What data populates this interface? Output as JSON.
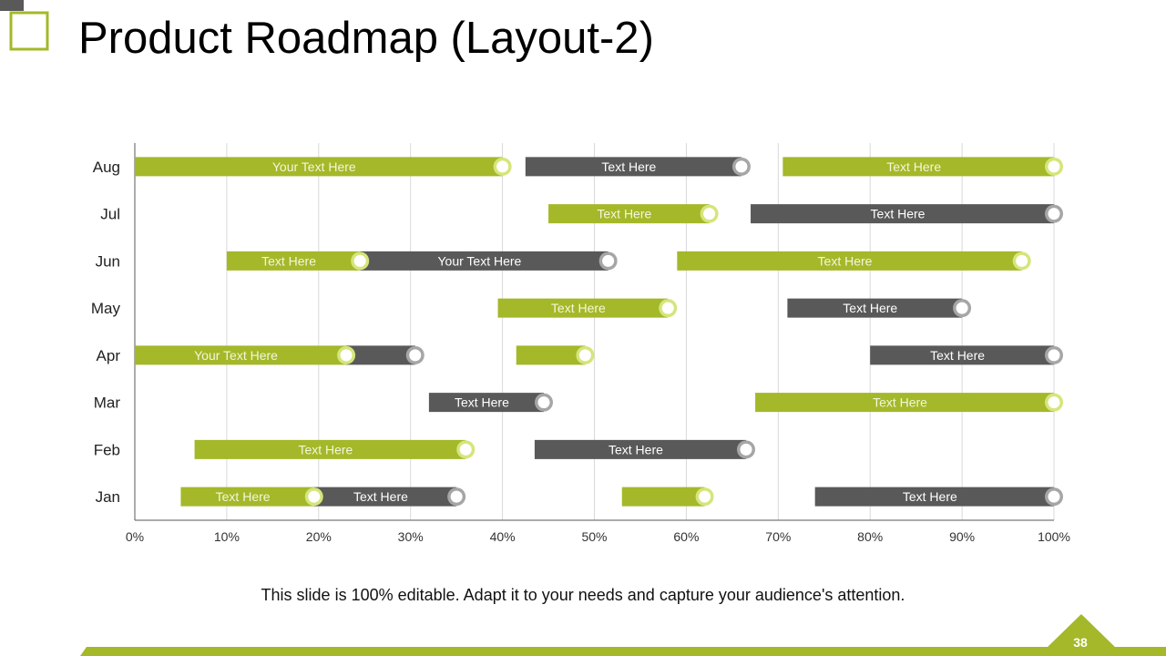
{
  "slide": {
    "title": "Product Roadmap (Layout-2)",
    "caption": "This slide is 100% editable. Adapt it to your needs and capture your audience's attention.",
    "page_number": "38"
  },
  "colors": {
    "green": "#A4B82A",
    "dark": "#595959",
    "ring_green": "#D6E57A",
    "ring_gray": "#A6A6A6",
    "grid": "#D9D9D9",
    "accent_deco": "#A4B82A"
  },
  "chart_data": {
    "type": "bar",
    "orientation": "horizontal-gantt",
    "categories": [
      "Jan",
      "Feb",
      "Mar",
      "Apr",
      "May",
      "Jun",
      "Jul",
      "Aug"
    ],
    "xlim": [
      0,
      100
    ],
    "x_ticks": [
      "0%",
      "10%",
      "20%",
      "30%",
      "40%",
      "50%",
      "60%",
      "70%",
      "80%",
      "90%",
      "100%"
    ],
    "grid": true,
    "bars": [
      {
        "row": "Aug",
        "start": 0,
        "end": 40,
        "color": "green",
        "label": "Your Text Here"
      },
      {
        "row": "Aug",
        "start": 42.5,
        "end": 66,
        "color": "dark",
        "label": "Text Here"
      },
      {
        "row": "Aug",
        "start": 70.5,
        "end": 100,
        "color": "green",
        "label": "Text Here"
      },
      {
        "row": "Jul",
        "start": 45,
        "end": 62.5,
        "color": "green",
        "label": "Text Here"
      },
      {
        "row": "Jul",
        "start": 67,
        "end": 100,
        "color": "dark",
        "label": "Text Here"
      },
      {
        "row": "Jun",
        "start": 24.5,
        "end": 51.5,
        "color": "dark",
        "label": "Your Text Here"
      },
      {
        "row": "Jun",
        "start": 10,
        "end": 24.5,
        "color": "green",
        "label": "Text Here"
      },
      {
        "row": "Jun",
        "start": 59,
        "end": 96.5,
        "color": "green",
        "label": "Text Here"
      },
      {
        "row": "May",
        "start": 39.5,
        "end": 58,
        "color": "green",
        "label": "Text Here"
      },
      {
        "row": "May",
        "start": 71,
        "end": 90,
        "color": "dark",
        "label": "Text Here"
      },
      {
        "row": "Apr",
        "start": 23,
        "end": 30.5,
        "color": "dark",
        "label": ""
      },
      {
        "row": "Apr",
        "start": 0,
        "end": 23,
        "color": "green",
        "label": "Your Text Here"
      },
      {
        "row": "Apr",
        "start": 41.5,
        "end": 49,
        "color": "green",
        "label": ""
      },
      {
        "row": "Apr",
        "start": 80,
        "end": 100,
        "color": "dark",
        "label": "Text Here"
      },
      {
        "row": "Mar",
        "start": 32,
        "end": 44.5,
        "color": "dark",
        "label": "Text Here"
      },
      {
        "row": "Mar",
        "start": 67.5,
        "end": 100,
        "color": "green",
        "label": "Text Here"
      },
      {
        "row": "Feb",
        "start": 6.5,
        "end": 36,
        "color": "green",
        "label": "Text Here"
      },
      {
        "row": "Feb",
        "start": 43.5,
        "end": 66.5,
        "color": "dark",
        "label": "Text Here"
      },
      {
        "row": "Jan",
        "start": 19.5,
        "end": 35,
        "color": "dark",
        "label": "Text Here"
      },
      {
        "row": "Jan",
        "start": 5,
        "end": 19.5,
        "color": "green",
        "label": "Text Here"
      },
      {
        "row": "Jan",
        "start": 53,
        "end": 62,
        "color": "green",
        "label": ""
      },
      {
        "row": "Jan",
        "start": 74,
        "end": 100,
        "color": "dark",
        "label": "Text Here"
      }
    ]
  }
}
